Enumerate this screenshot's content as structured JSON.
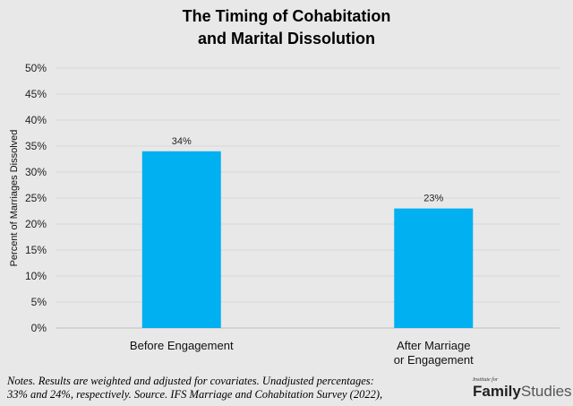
{
  "chart_data": {
    "type": "bar",
    "title_line1": "The Timing of Cohabitation",
    "title_line2": "and Marital Dissolution",
    "categories": [
      [
        "Before Engagement"
      ],
      [
        "After Marriage",
        "or Engagement"
      ]
    ],
    "values": [
      34,
      23
    ],
    "data_labels": [
      "34%",
      "23%"
    ],
    "ylabel": "Percent of Marriages Dissolved",
    "xlabel": "",
    "ylim": [
      0,
      50
    ],
    "yticks": [
      0,
      5,
      10,
      15,
      20,
      25,
      30,
      35,
      40,
      45,
      50
    ],
    "ytick_labels": [
      "0%",
      "5%",
      "10%",
      "15%",
      "20%",
      "25%",
      "30%",
      "35%",
      "40%",
      "45%",
      "50%"
    ],
    "grid": true,
    "bar_color": "#00b0f0"
  },
  "notes": {
    "line1": "Notes. Results are weighted and adjusted for covariates. Unadjusted percentages:",
    "line2": "33% and 24%, respectively. Source. IFS Marriage and Cohabitation Survey (2022),"
  },
  "logo": {
    "small": "Institute for",
    "family": "Family",
    "studies": "Studies"
  }
}
